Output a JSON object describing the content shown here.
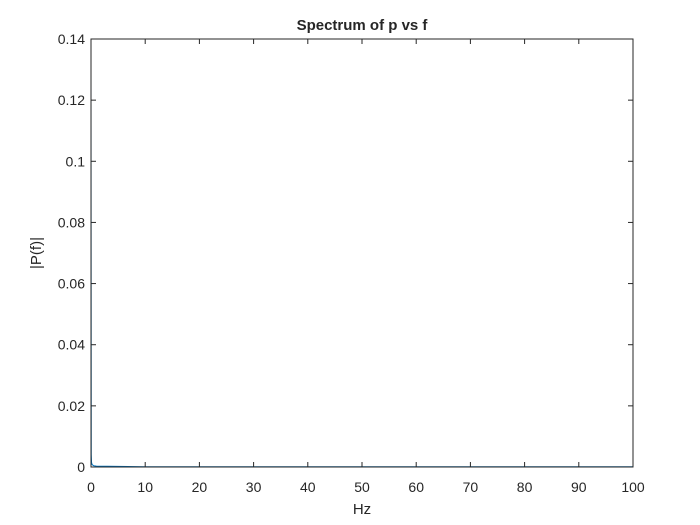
{
  "chart_data": {
    "type": "line",
    "title": "Spectrum of p vs f",
    "xlabel": "Hz",
    "ylabel": "|P(f)|",
    "xlim": [
      0,
      100
    ],
    "ylim": [
      0,
      0.14
    ],
    "xticks": [
      0,
      10,
      20,
      30,
      40,
      50,
      60,
      70,
      80,
      90,
      100
    ],
    "xtick_labels": [
      "0",
      "10",
      "20",
      "30",
      "40",
      "50",
      "60",
      "70",
      "80",
      "90",
      "100"
    ],
    "yticks": [
      0,
      0.02,
      0.04,
      0.06,
      0.08,
      0.1,
      0.12,
      0.14
    ],
    "ytick_labels": [
      "0",
      "0.02",
      "0.04",
      "0.06",
      "0.08",
      "0.1",
      "0.12",
      "0.14"
    ],
    "grid": false,
    "series": [
      {
        "color": "#0072bd",
        "x": [
          0,
          0.05,
          0.1,
          0.2,
          0.5,
          1,
          5,
          10,
          20,
          30,
          40,
          50,
          60,
          70,
          80,
          90,
          100
        ],
        "y": [
          0.131,
          0.004,
          0.0015,
          0.0008,
          0.0004,
          0.0003,
          0.0002,
          0.0001,
          0.0001,
          0.0001,
          0.0001,
          0.0001,
          0.0001,
          0.0001,
          0.0001,
          0.0001,
          0.0001
        ]
      }
    ]
  }
}
